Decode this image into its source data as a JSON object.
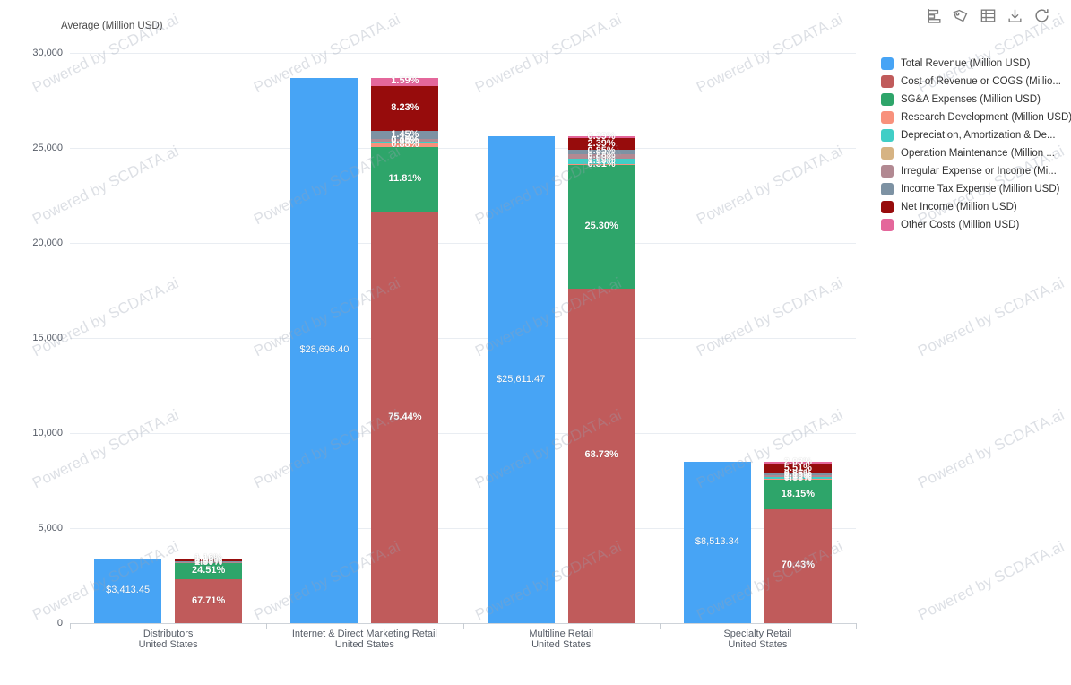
{
  "toolbar": {
    "icons": [
      {
        "name": "chart-type-icon"
      },
      {
        "name": "tag-icon"
      },
      {
        "name": "table-icon"
      },
      {
        "name": "download-icon"
      },
      {
        "name": "refresh-icon"
      }
    ]
  },
  "watermark": {
    "text": "Powered by SCDATA.ai"
  },
  "chart_data": {
    "type": "bar",
    "variant": "revenue bar + percentage stacked bar per category",
    "axis_title": "Average (Million USD)",
    "ylim": [
      0,
      30000
    ],
    "ytick_values": [
      0,
      5000,
      10000,
      15000,
      20000,
      25000,
      30000
    ],
    "ytick_labels": [
      "0",
      "5,000",
      "10,000",
      "15,000",
      "20,000",
      "25,000",
      "30,000"
    ],
    "grid": true,
    "categories": [
      {
        "line1": "Distributors",
        "line2": "United States"
      },
      {
        "line1": "Internet & Direct Marketing Retail",
        "line2": "United States"
      },
      {
        "line1": "Multiline Retail",
        "line2": "United States"
      },
      {
        "line1": "Specialty Retail",
        "line2": "United States"
      }
    ],
    "revenue": {
      "name": "Total Revenue (Million USD)",
      "color": "#47a4f5",
      "values": [
        3413.45,
        28696.4,
        25611.47,
        8513.34
      ],
      "labels": [
        "$3,413.45",
        "$28,696.40",
        "$25,611.47",
        "$8,513.34"
      ]
    },
    "stack": {
      "note": "percent of total revenue, stacked bottom to top",
      "series": [
        {
          "name": "Cost of Revenue or COGS (Millio...",
          "color": "#c05b5b",
          "values": [
            67.71,
            75.44,
            68.73,
            70.43
          ]
        },
        {
          "name": "SG&A Expenses (Million USD)",
          "color": "#2ea56a",
          "values": [
            24.51,
            11.81,
            25.3,
            18.15
          ]
        },
        {
          "name": "Research Development (Million USD)",
          "color": "#f8917c",
          "values": [
            0.0,
            0.88,
            0.31,
            0.88
          ]
        },
        {
          "name": "Depreciation, Amortization & De...",
          "color": "#41cec6",
          "values": [
            1.37,
            0.15,
            1.15,
            1.0
          ]
        },
        {
          "name": "Operation Maintenance (Million ...",
          "color": "#d6b383",
          "values": [
            0.0,
            0.0,
            0.0,
            0.0
          ]
        },
        {
          "name": "Irregular Expense or Income (Mi...",
          "color": "#b28992",
          "values": [
            0.45,
            0.45,
            0.88,
            1.15
          ]
        },
        {
          "name": "Income Tax Expense (Million USD)",
          "color": "#7d92a3",
          "values": [
            1.8,
            1.45,
            0.85,
            0.85
          ]
        },
        {
          "name": "Net Income (Million USD)",
          "color": "#970c0c",
          "values": [
            3.0,
            8.23,
            2.39,
            5.51
          ]
        },
        {
          "name": "Other Costs (Million USD)",
          "color": "#e4679b",
          "values": [
            1.16,
            1.59,
            0.39,
            2.03
          ]
        }
      ]
    },
    "legend": {
      "position": "right",
      "items": [
        {
          "label": "Total Revenue (Million USD)",
          "color": "#47a4f5"
        },
        {
          "label": "Cost of Revenue or COGS (Millio...",
          "color": "#c05b5b"
        },
        {
          "label": "SG&A Expenses (Million USD)",
          "color": "#2ea56a"
        },
        {
          "label": "Research Development (Million USD)",
          "color": "#f8917c"
        },
        {
          "label": "Depreciation, Amortization & De...",
          "color": "#41cec6"
        },
        {
          "label": "Operation Maintenance (Million ...",
          "color": "#d6b383"
        },
        {
          "label": "Irregular Expense or Income (Mi...",
          "color": "#b28992"
        },
        {
          "label": "Income Tax Expense (Million USD)",
          "color": "#7d92a3"
        },
        {
          "label": "Net Income (Million USD)",
          "color": "#970c0c"
        },
        {
          "label": "Other Costs (Million USD)",
          "color": "#e4679b"
        }
      ]
    }
  }
}
